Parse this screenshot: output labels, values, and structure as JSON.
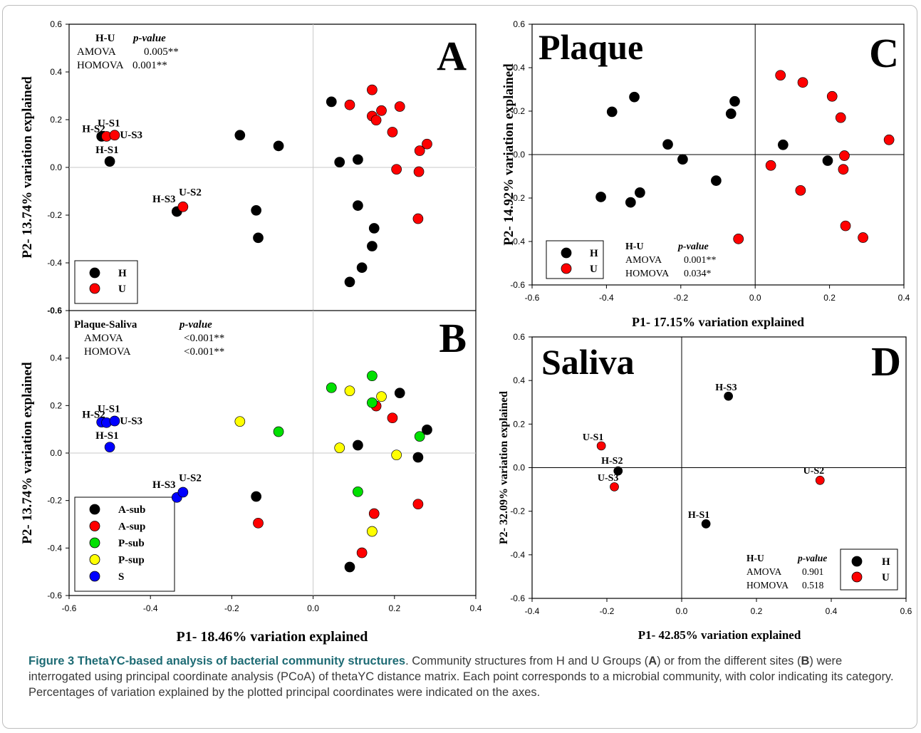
{
  "chart_data": [
    {
      "panel": "A",
      "type": "scatter",
      "label": "A",
      "title": "",
      "ylabel": "P2- 13.74% variation explained",
      "xlabel": "",
      "xlim": [
        -0.6,
        0.4
      ],
      "ylim": [
        -0.6,
        0.6
      ],
      "xticks": [],
      "yticks": [
        "0.6",
        "0.4",
        "0.2",
        "0.0",
        "-0.2",
        "-0.4",
        "-0.6"
      ],
      "stats": {
        "header": "H-U",
        "pheader": "p-value",
        "rows": [
          [
            "AMOVA",
            "0.005**"
          ],
          [
            "HOMOVA",
            "0.001**"
          ]
        ]
      },
      "legend": {
        "placement": "bottom-left",
        "entries": [
          {
            "name": "H",
            "color": "#000000"
          },
          {
            "name": "U",
            "color": "#ff0000"
          }
        ]
      },
      "series": [
        {
          "name": "H",
          "color": "#000000",
          "points": [
            [
              -0.52,
              0.13
            ],
            [
              -0.5,
              0.025
            ],
            [
              -0.335,
              -0.185
            ],
            [
              -0.18,
              0.135
            ],
            [
              -0.085,
              0.09
            ],
            [
              -0.14,
              -0.18
            ],
            [
              -0.135,
              -0.295
            ],
            [
              0.045,
              0.275
            ],
            [
              0.065,
              0.022
            ],
            [
              0.11,
              0.033
            ],
            [
              0.11,
              -0.16
            ],
            [
              0.15,
              -0.255
            ],
            [
              0.145,
              -0.33
            ],
            [
              0.12,
              -0.42
            ],
            [
              0.09,
              -0.48
            ]
          ]
        },
        {
          "name": "U",
          "color": "#ff0000",
          "points": [
            [
              -0.508,
              0.13
            ],
            [
              -0.488,
              0.135
            ],
            [
              -0.32,
              -0.165
            ],
            [
              0.09,
              0.262
            ],
            [
              0.145,
              0.325
            ],
            [
              0.145,
              0.215
            ],
            [
              0.155,
              0.198
            ],
            [
              0.168,
              0.238
            ],
            [
              0.213,
              0.255
            ],
            [
              0.195,
              0.148
            ],
            [
              0.205,
              -0.008
            ],
            [
              0.26,
              -0.018
            ],
            [
              0.262,
              0.07
            ],
            [
              0.28,
              0.098
            ],
            [
              0.258,
              -0.215
            ]
          ]
        }
      ],
      "annotations": [
        {
          "text": "H-S2",
          "x": -0.568,
          "y": 0.148
        },
        {
          "text": "U-S1",
          "x": -0.53,
          "y": 0.172
        },
        {
          "text": "U-S3",
          "x": -0.475,
          "y": 0.122
        },
        {
          "text": "H-S1",
          "x": -0.535,
          "y": 0.06
        },
        {
          "text": "U-S2",
          "x": -0.33,
          "y": -0.118
        },
        {
          "text": "H-S3",
          "x": -0.395,
          "y": -0.147
        }
      ]
    },
    {
      "panel": "B",
      "type": "scatter",
      "label": "B",
      "title": "",
      "ylabel": "P2- 13.74% variation explained",
      "xlabel": "P1- 18.46% variation explained",
      "xlim": [
        -0.6,
        0.4
      ],
      "ylim": [
        -0.6,
        0.6
      ],
      "xticks": [
        "-0.6",
        "-0.4",
        "-0.2",
        "0.0",
        "0.2",
        "0.4"
      ],
      "yticks": [
        "0.4",
        "0.2",
        "0.0",
        "-0.2",
        "-0.4",
        "-0.6"
      ],
      "stats": {
        "header": "Plaque-Saliva",
        "pheader": "p-value",
        "rows": [
          [
            "AMOVA",
            "<0.001**"
          ],
          [
            "HOMOVA",
            "<0.001**"
          ]
        ]
      },
      "legend": {
        "placement": "bottom-left",
        "entries": [
          {
            "name": "A-sub",
            "color": "#000000"
          },
          {
            "name": "A-sup",
            "color": "#ff0000"
          },
          {
            "name": "P-sub",
            "color": "#00e000"
          },
          {
            "name": "P-sup",
            "color": "#ffff00"
          },
          {
            "name": "S",
            "color": "#0000ff"
          }
        ]
      },
      "series": [
        {
          "name": "A-sub",
          "color": "#000000",
          "points": [
            [
              0.213,
              0.253
            ],
            [
              0.28,
              0.098
            ],
            [
              0.11,
              0.033
            ],
            [
              0.258,
              -0.018
            ],
            [
              -0.14,
              -0.183
            ],
            [
              0.09,
              -0.48
            ]
          ]
        },
        {
          "name": "A-sup",
          "color": "#ff0000",
          "points": [
            [
              0.155,
              0.198
            ],
            [
              0.195,
              0.148
            ],
            [
              0.258,
              -0.215
            ],
            [
              0.15,
              -0.255
            ],
            [
              -0.135,
              -0.295
            ],
            [
              0.12,
              -0.42
            ]
          ]
        },
        {
          "name": "P-sub",
          "color": "#00e000",
          "points": [
            [
              0.045,
              0.275
            ],
            [
              0.145,
              0.325
            ],
            [
              0.145,
              0.212
            ],
            [
              0.262,
              0.07
            ],
            [
              -0.085,
              0.09
            ],
            [
              0.11,
              -0.163
            ]
          ]
        },
        {
          "name": "P-sup",
          "color": "#ffff00",
          "points": [
            [
              0.09,
              0.262
            ],
            [
              0.168,
              0.238
            ],
            [
              -0.18,
              0.133
            ],
            [
              0.065,
              0.022
            ],
            [
              0.205,
              -0.008
            ],
            [
              0.145,
              -0.33
            ]
          ]
        },
        {
          "name": "S",
          "color": "#0000ff",
          "points": [
            [
              -0.52,
              0.13
            ],
            [
              -0.508,
              0.128
            ],
            [
              -0.488,
              0.135
            ],
            [
              -0.5,
              0.025
            ],
            [
              -0.335,
              -0.187
            ],
            [
              -0.32,
              -0.165
            ]
          ]
        }
      ],
      "annotations": [
        {
          "text": "H-S2",
          "x": -0.568,
          "y": 0.148
        },
        {
          "text": "U-S1",
          "x": -0.53,
          "y": 0.172
        },
        {
          "text": "U-S3",
          "x": -0.475,
          "y": 0.122
        },
        {
          "text": "H-S1",
          "x": -0.535,
          "y": 0.06
        },
        {
          "text": "U-S2",
          "x": -0.33,
          "y": -0.118
        },
        {
          "text": "H-S3",
          "x": -0.395,
          "y": -0.147
        }
      ]
    },
    {
      "panel": "C",
      "type": "scatter",
      "label": "C",
      "title": "Plaque",
      "ylabel": "P2- 14.92% variation explained",
      "xlabel": "P1- 17.15% variation explained",
      "xlim": [
        -0.6,
        0.4
      ],
      "ylim": [
        -0.6,
        0.6
      ],
      "xticks": [
        "-0.6",
        "-0.4",
        "-0.2",
        "0.0",
        "0.2",
        "0.4"
      ],
      "yticks": [
        "0.6",
        "0.4",
        "0.2",
        "0.0",
        "-0.2",
        "-0.4",
        "-0.6"
      ],
      "stats": {
        "header": "H-U",
        "pheader": "p-value",
        "rows": [
          [
            "AMOVA",
            "0.001**"
          ],
          [
            "HOMOVA",
            "0.034*"
          ]
        ]
      },
      "legend": {
        "placement": "bottom-left",
        "entries": [
          {
            "name": "H",
            "color": "#000000"
          },
          {
            "name": "U",
            "color": "#ff0000"
          }
        ]
      },
      "series": [
        {
          "name": "H",
          "color": "#000000",
          "points": [
            [
              -0.385,
              0.197
            ],
            [
              -0.325,
              0.265
            ],
            [
              -0.065,
              0.188
            ],
            [
              -0.055,
              0.245
            ],
            [
              -0.235,
              0.047
            ],
            [
              -0.195,
              -0.022
            ],
            [
              -0.105,
              -0.12
            ],
            [
              0.075,
              0.045
            ],
            [
              0.195,
              -0.028
            ],
            [
              -0.415,
              -0.195
            ],
            [
              -0.31,
              -0.175
            ],
            [
              -0.335,
              -0.22
            ]
          ]
        },
        {
          "name": "U",
          "color": "#ff0000",
          "points": [
            [
              0.068,
              0.365
            ],
            [
              0.128,
              0.332
            ],
            [
              0.207,
              0.268
            ],
            [
              0.23,
              0.17
            ],
            [
              0.36,
              0.068
            ],
            [
              0.24,
              -0.005
            ],
            [
              0.042,
              -0.05
            ],
            [
              0.237,
              -0.068
            ],
            [
              0.122,
              -0.165
            ],
            [
              0.243,
              -0.328
            ],
            [
              0.29,
              -0.382
            ],
            [
              -0.045,
              -0.388
            ]
          ]
        }
      ],
      "annotations": []
    },
    {
      "panel": "D",
      "type": "scatter",
      "label": "D",
      "title": "Saliva",
      "ylabel": "P2- 32.09% variation explained",
      "xlabel": "P1- 42.85% variation explained",
      "xlim": [
        -0.4,
        0.6
      ],
      "ylim": [
        -0.6,
        0.6
      ],
      "xticks": [
        "-0.4",
        "-0.2",
        "0.0",
        "0.2",
        "0.4",
        "0.6"
      ],
      "yticks": [
        "0.6",
        "0.4",
        "0.2",
        "0.0",
        "-0.2",
        "-0.4",
        "-0.6"
      ],
      "stats": {
        "header": "H-U",
        "pheader": "p-value",
        "rows": [
          [
            "AMOVA",
            "0.901"
          ],
          [
            "HOMOVA",
            "0.518"
          ]
        ]
      },
      "legend": {
        "placement": "bottom-right",
        "entries": [
          {
            "name": "H",
            "color": "#000000"
          },
          {
            "name": "U",
            "color": "#ff0000"
          }
        ]
      },
      "series": [
        {
          "name": "H",
          "color": "#000000",
          "points": [
            [
              0.125,
              0.328
            ],
            [
              -0.17,
              -0.015
            ],
            [
              0.065,
              -0.258
            ]
          ]
        },
        {
          "name": "U",
          "color": "#ff0000",
          "points": [
            [
              -0.215,
              0.1
            ],
            [
              -0.18,
              -0.088
            ],
            [
              0.37,
              -0.058
            ]
          ]
        }
      ],
      "annotations": [
        {
          "text": "H-S3",
          "x": 0.09,
          "y": 0.355
        },
        {
          "text": "U-S1",
          "x": -0.265,
          "y": 0.126
        },
        {
          "text": "H-S2",
          "x": -0.215,
          "y": 0.018
        },
        {
          "text": "U-S3",
          "x": -0.225,
          "y": -0.06
        },
        {
          "text": "U-S2",
          "x": 0.325,
          "y": -0.028
        },
        {
          "text": "H-S1",
          "x": 0.017,
          "y": -0.23
        }
      ]
    }
  ],
  "caption": {
    "title": "Figure 3 ThetaYC-based analysis of bacterial community structures",
    "parts": [
      {
        "text": ". Community structures from H and U Groups (",
        "bold": false
      },
      {
        "text": "A",
        "bold": true
      },
      {
        "text": ") or from the different sites (",
        "bold": false
      },
      {
        "text": "B",
        "bold": true
      },
      {
        "text": ") were interrogated using principal coordinate analysis (PCoA) of thetaYC distance matrix. Each point corresponds to a microbial community, with color indicating its category. Percentages of variation explained by the plotted principal coordinates were indicated on the axes.",
        "bold": false
      }
    ]
  }
}
